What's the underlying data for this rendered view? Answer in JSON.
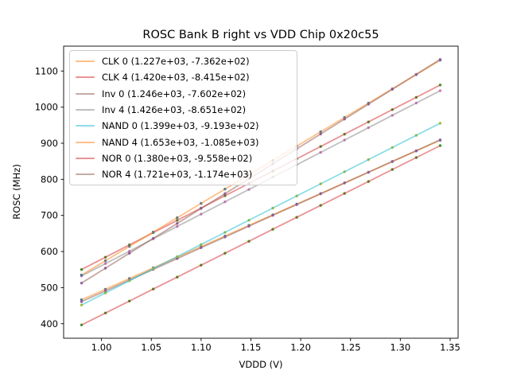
{
  "chart_data": {
    "type": "scatter",
    "title": "ROSC Bank B right vs VDD Chip 0x20c55",
    "xlabel": "VDDD (V)",
    "ylabel": "ROSC (MHz)",
    "grid": false,
    "legend_position": "upper left",
    "xlim": [
      0.962,
      1.358
    ],
    "ylim": [
      359.8,
      1168.9
    ],
    "xticks": {
      "values": [
        1.0,
        1.05,
        1.1,
        1.15,
        1.2,
        1.25,
        1.3,
        1.35
      ],
      "labels": [
        "1.00",
        "1.05",
        "1.10",
        "1.15",
        "1.20",
        "1.25",
        "1.30",
        "1.35"
      ]
    },
    "yticks": {
      "values": [
        400,
        500,
        600,
        700,
        800,
        900,
        1000,
        1100
      ],
      "labels": [
        "400",
        "500",
        "600",
        "700",
        "800",
        "900",
        "1000",
        "1100"
      ]
    },
    "x": [
      0.98,
      1.004,
      1.028,
      1.052,
      1.076,
      1.1,
      1.124,
      1.148,
      1.172,
      1.196,
      1.22,
      1.244,
      1.268,
      1.292,
      1.316,
      1.34
    ],
    "series": [
      {
        "name": "CLK 0",
        "label": "CLK 0 (1.227e+03, -7.362e+02)",
        "fit_slope": 1227.0,
        "fit_intercept": -736.2,
        "line_color": "#ff7f0e",
        "line_alpha": 0.5,
        "marker_color": "#1f77b4",
        "y": [
          466.3,
          495.7,
          525.2,
          554.6,
          584.1,
          613.5,
          642.9,
          672.4,
          701.8,
          731.3,
          760.7,
          790.2,
          819.6,
          849.1,
          878.5,
          908.0
        ]
      },
      {
        "name": "CLK 4",
        "label": "CLK 4 (1.420e+03, -8.415e+02)",
        "fit_slope": 1420.0,
        "fit_intercept": -841.5,
        "line_color": "#d62728",
        "line_alpha": 0.5,
        "marker_color": "#2ca02c",
        "y": [
          550.1,
          584.2,
          618.3,
          652.3,
          686.4,
          720.5,
          754.6,
          788.7,
          822.7,
          856.8,
          890.9,
          925.0,
          959.1,
          993.1,
          1027.2,
          1061.3
        ]
      },
      {
        "name": "Inv 0",
        "label": "Inv 0 (1.246e+03, -7.602e+02)",
        "fit_slope": 1246.0,
        "fit_intercept": -760.2,
        "line_color": "#8c564b",
        "line_alpha": 0.5,
        "marker_color": "#9467bd",
        "y": [
          460.9,
          490.8,
          520.7,
          550.6,
          580.5,
          610.4,
          640.3,
          670.2,
          700.1,
          730.0,
          759.9,
          789.8,
          819.7,
          849.6,
          879.5,
          909.4
        ]
      },
      {
        "name": "Inv 4",
        "label": "Inv 4 (1.426e+03, -8.651e+02)",
        "fit_slope": 1426.0,
        "fit_intercept": -865.1,
        "line_color": "#7f7f7f",
        "line_alpha": 0.5,
        "marker_color": "#e377c2",
        "y": [
          532.4,
          566.6,
          600.8,
          635.1,
          669.3,
          703.5,
          737.7,
          771.9,
          806.2,
          840.4,
          874.6,
          908.8,
          943.1,
          977.3,
          1011.5,
          1045.7
        ]
      },
      {
        "name": "NAND 0",
        "label": "NAND 0 (1.399e+03, -9.193e+02)",
        "fit_slope": 1399.0,
        "fit_intercept": -919.3,
        "line_color": "#17becf",
        "line_alpha": 0.5,
        "marker_color": "#bcbd22",
        "y": [
          451.7,
          485.3,
          518.9,
          552.4,
          586.0,
          619.6,
          653.2,
          686.8,
          720.3,
          753.9,
          787.5,
          821.1,
          854.6,
          888.2,
          921.8,
          955.4
        ]
      },
      {
        "name": "NAND 4",
        "label": "NAND 4 (1.653e+03, -1.085e+03)",
        "fit_slope": 1653.0,
        "fit_intercept": -1085.0,
        "line_color": "#ff7f0e",
        "line_alpha": 0.5,
        "marker_color": "#1f77b4",
        "y": [
          534.9,
          574.6,
          614.3,
          654.0,
          693.6,
          733.3,
          773.0,
          812.6,
          852.3,
          892.0,
          931.7,
          971.3,
          1011.0,
          1050.7,
          1090.3,
          1130.0
        ]
      },
      {
        "name": "NOR 0",
        "label": "NOR 0 (1.380e+03, -9.558e+02)",
        "fit_slope": 1380.0,
        "fit_intercept": -955.8,
        "line_color": "#d62728",
        "line_alpha": 0.5,
        "marker_color": "#2ca02c",
        "y": [
          396.6,
          429.7,
          462.8,
          496.0,
          529.1,
          562.2,
          595.3,
          628.4,
          661.6,
          694.7,
          727.8,
          760.9,
          794.0,
          827.2,
          860.3,
          893.4
        ]
      },
      {
        "name": "NOR 4",
        "label": "NOR 4 (1.721e+03, -1.174e+03)",
        "fit_slope": 1721.0,
        "fit_intercept": -1174.0,
        "line_color": "#8c564b",
        "line_alpha": 0.5,
        "marker_color": "#9467bd",
        "y": [
          512.6,
          553.9,
          595.2,
          636.5,
          677.8,
          719.1,
          760.4,
          801.7,
          843.0,
          884.3,
          925.6,
          966.9,
          1008.2,
          1049.5,
          1090.8,
          1132.1
        ]
      }
    ]
  },
  "colors": {
    "background": "#ffffff",
    "axis": "#000000",
    "tick_label": "#000000",
    "legend_border": "#cccccc"
  }
}
